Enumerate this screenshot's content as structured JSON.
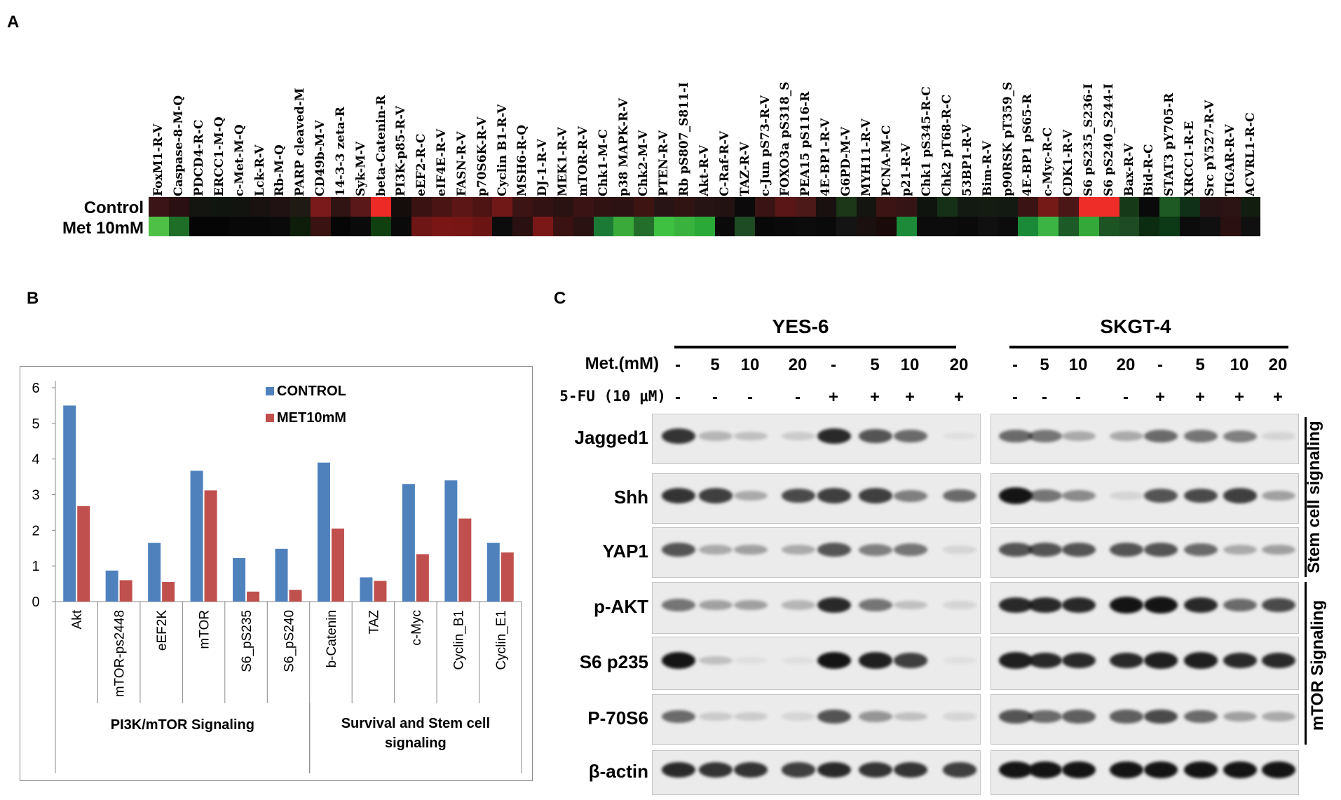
{
  "panels": {
    "a": "A",
    "b": "B",
    "c": "C"
  },
  "panel_a": {
    "row_labels": [
      "Control",
      "Met 10mM"
    ],
    "proteins": [
      "FoxM1-R-V",
      "Caspase-8-M-Q",
      "PDCD4-R-C",
      "ERCC1-M-Q",
      "c-Met-M-Q",
      "Lck-R-V",
      "Rb-M-Q",
      "PARP cleaved-M",
      "CD49b-M-V",
      "14-3-3 zeta-R",
      "Syk-M-V",
      "beta-Catenin-R",
      "PI3K-p85-R-V",
      "eEF2-R-C",
      "eIF4E-R-V",
      "FASN-R-V",
      "p70S6K-R-V",
      "Cyclin B1-R-V",
      "MSH6-R-Q",
      "DJ-1-R-V",
      "MEK1-R-V",
      "mTOR-R-V",
      "Chk1-M-C",
      "p38 MAPK-R-V",
      "Chk2-M-V",
      "PTEN-R-V",
      "Rb pS807_S811-I",
      "Akt-R-V",
      "C-Raf-R-V",
      "TAZ-R-V",
      "c-Jun pS73-R-V",
      "FOXO3a pS318_S",
      "PEA15 pS116-R",
      "4E-BP1-R-V",
      "G6PD-M-V",
      "MYH11-R-V",
      "PCNA-M-C",
      "p21-R-V",
      "Chk1 pS345-R-C",
      "Chk2 pT68-R-C",
      "53BP1-R-V",
      "Bim-R-V",
      "p90RSK pT359_S",
      "4E-BP1 pS65-R",
      "c-Myc-R-C",
      "CDK1-R-V",
      "S6 pS235_S236-I",
      "S6 pS240_S244-I",
      "Bax-R-V",
      "Bid-R-C",
      "STAT3 pY705-R",
      "XRCC1-R-E",
      "Src pY527-R-V",
      "TIGAR-R-V",
      "ACVRL1-R-C"
    ],
    "control_colors": [
      "#3a1416",
      "#2a1012",
      "#141410",
      "#101510",
      "#12140f",
      "#1a1210",
      "#201212",
      "#1f1a14",
      "#7a1a1a",
      "#301414",
      "#5a1818",
      "#ee2a26",
      "#140d0c",
      "#3a1212",
      "#4a1414",
      "#5c1616",
      "#4e1414",
      "#701818",
      "#3c1414",
      "#321212",
      "#2a1212",
      "#3a1414",
      "#301212",
      "#2c1212",
      "#3e1412",
      "#281414",
      "#301414",
      "#261414",
      "#221212",
      "#0c0a0a",
      "#3a1414",
      "#5a1616",
      "#4c1818",
      "#1a1010",
      "#1c3618",
      "#141410",
      "#3c1414",
      "#341414",
      "#10140f",
      "#163018",
      "#121a12",
      "#141c12",
      "#121a12",
      "#3a1414",
      "#761a18",
      "#4a1616",
      "#ee2c28",
      "#ee2c28",
      "#163a18",
      "#0a0a0a",
      "#1e5a24",
      "#103018",
      "#261414",
      "#2c1414",
      "#121d10"
    ],
    "met_colors": [
      "#4fc046",
      "#1e6e28",
      "#050505",
      "#050505",
      "#080808",
      "#080808",
      "#0a0a0a",
      "#0e1c0a",
      "#3a1212",
      "#060606",
      "#0a0a0a",
      "#104010",
      "#0a0a0a",
      "#6e1616",
      "#7a1616",
      "#781616",
      "#6a1414",
      "#0c0c0c",
      "#2a1010",
      "#7a1818",
      "#3a1212",
      "#2a1212",
      "#1a7a36",
      "#3aaa3a",
      "#246e2c",
      "#3ec040",
      "#3ab23e",
      "#2aa838",
      "#0a0a0a",
      "#1e4a24",
      "#080808",
      "#0a0a0a",
      "#0c0c0c",
      "#0a0a0a",
      "#141414",
      "#1a1010",
      "#1a0a0a",
      "#1c8a38",
      "#0c0c0c",
      "#0c0c0c",
      "#0a0a0a",
      "#101010",
      "#0c0c0c",
      "#1a8a38",
      "#3cb444",
      "#1c5a28",
      "#34a838",
      "#1c5424",
      "#1e4a24",
      "#0c2c12",
      "#0c3a16",
      "#0c0c0c",
      "#101010",
      "#2a1010",
      "#101010"
    ]
  },
  "chart_data": {
    "type": "bar",
    "categories": [
      "Akt",
      "mTOR-ps2448",
      "eEF2K",
      "mTOR",
      "S6_pS235",
      "S6_pS240",
      "b-Catenin",
      "TAZ",
      "c-Myc",
      "Cyclin_B1",
      "Cyclin_E1"
    ],
    "series": [
      {
        "name": "CONTROL",
        "values": [
          5.5,
          0.87,
          1.65,
          3.67,
          1.22,
          1.48,
          3.9,
          0.68,
          3.3,
          3.4,
          1.65
        ],
        "color": "#4f81bd"
      },
      {
        "name": "MET10mM",
        "values": [
          2.68,
          0.6,
          0.55,
          3.12,
          0.28,
          0.33,
          2.05,
          0.58,
          1.33,
          2.33,
          1.38
        ],
        "color": "#c0504d"
      }
    ],
    "yticks": [
      "0",
      "1",
      "2",
      "3",
      "4",
      "5",
      "6"
    ],
    "ylim": [
      0,
      6
    ],
    "groups": [
      {
        "label": "PI3K/mTOR Signaling",
        "span": 6
      },
      {
        "label": "Survival and Stem cell signaling",
        "span": 5
      }
    ],
    "legend_position": "top-right",
    "grid": false
  },
  "panel_c": {
    "cell_lines": [
      "YES-6",
      "SKGT-4"
    ],
    "met_label": "Met.(mM)",
    "fu_label": "5-FU (10 μM)",
    "met_values": [
      "-",
      "5",
      "10",
      "20",
      "-",
      "5",
      "10",
      "20"
    ],
    "fu_values": [
      "-",
      "-",
      "-",
      "-",
      "+",
      "+",
      "+",
      "+"
    ],
    "proteins": [
      "Jagged1",
      "Shh",
      "YAP1",
      "p-AKT",
      "S6 p235",
      "P-70S6",
      "β-actin"
    ],
    "side_labels": [
      "Stem cell signaling",
      "mTOR Signaling"
    ],
    "band_intensities": {
      "yes6": [
        [
          0.85,
          0.25,
          0.2,
          0.15,
          0.9,
          0.7,
          0.6,
          0.0
        ],
        [
          0.85,
          0.8,
          0.3,
          0.75,
          0.8,
          0.8,
          0.5,
          0.6
        ],
        [
          0.7,
          0.3,
          0.35,
          0.3,
          0.7,
          0.5,
          0.55,
          0.1
        ],
        [
          0.55,
          0.35,
          0.35,
          0.25,
          0.9,
          0.55,
          0.2,
          0.1
        ],
        [
          1.0,
          0.2,
          0.05,
          0.05,
          1.0,
          0.95,
          0.8,
          0.05
        ],
        [
          0.6,
          0.15,
          0.15,
          0.1,
          0.7,
          0.4,
          0.2,
          0.1
        ],
        [
          0.9,
          0.85,
          0.85,
          0.8,
          0.9,
          0.85,
          0.85,
          0.8
        ]
      ],
      "skgt4": [
        [
          0.6,
          0.55,
          0.3,
          0.3,
          0.6,
          0.55,
          0.5,
          0.1
        ],
        [
          1.0,
          0.55,
          0.45,
          0.1,
          0.7,
          0.75,
          0.8,
          0.35
        ],
        [
          0.7,
          0.7,
          0.7,
          0.7,
          0.7,
          0.6,
          0.3,
          0.35
        ],
        [
          0.9,
          0.9,
          0.9,
          1.0,
          1.0,
          0.9,
          0.6,
          0.75
        ],
        [
          0.95,
          0.9,
          0.9,
          0.9,
          0.95,
          0.95,
          0.9,
          0.9
        ],
        [
          0.7,
          0.6,
          0.65,
          0.65,
          0.75,
          0.6,
          0.35,
          0.3
        ],
        [
          1.0,
          1.0,
          1.0,
          1.0,
          1.0,
          1.0,
          1.0,
          1.0
        ]
      ]
    }
  }
}
